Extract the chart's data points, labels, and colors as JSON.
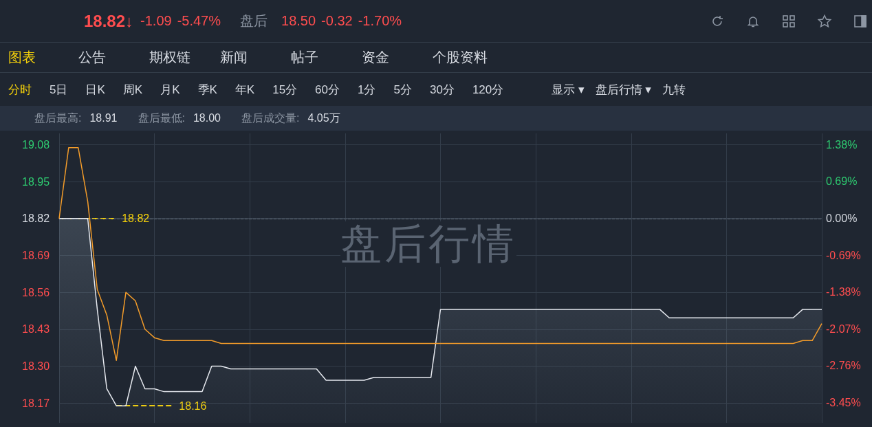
{
  "chart_data": {
    "type": "line",
    "categories": [
      null,
      null,
      null,
      null,
      null,
      null,
      null,
      null,
      null,
      null,
      null,
      null,
      null,
      null,
      null,
      null,
      null,
      null,
      null,
      null,
      null,
      null,
      null,
      null,
      null,
      null,
      null,
      null,
      null,
      null,
      null,
      null,
      null,
      null,
      null,
      null,
      null,
      null,
      null,
      null,
      null,
      null,
      null,
      null,
      null,
      null,
      null,
      null,
      null,
      null,
      null,
      null,
      null,
      null,
      null,
      null,
      null,
      null,
      null,
      null,
      null,
      null,
      null,
      null,
      null,
      null,
      null,
      null,
      null,
      null,
      null,
      null,
      null,
      null,
      null,
      null,
      null,
      null,
      null,
      null,
      null
    ],
    "series": [
      {
        "color": "#e6e9ef",
        "type": "area",
        "values": [
          18.82,
          18.82,
          18.82,
          18.82,
          18.5,
          18.22,
          18.16,
          18.16,
          18.3,
          18.22,
          18.22,
          18.21,
          18.21,
          18.21,
          18.21,
          18.21,
          18.3,
          18.3,
          18.29,
          18.29,
          18.29,
          18.29,
          18.29,
          18.29,
          18.29,
          18.29,
          18.29,
          18.29,
          18.25,
          18.25,
          18.25,
          18.25,
          18.25,
          18.26,
          18.26,
          18.26,
          18.26,
          18.26,
          18.26,
          18.26,
          18.5,
          18.5,
          18.5,
          18.5,
          18.5,
          18.5,
          18.5,
          18.5,
          18.5,
          18.5,
          18.5,
          18.5,
          18.5,
          18.5,
          18.5,
          18.5,
          18.5,
          18.5,
          18.5,
          18.5,
          18.5,
          18.5,
          18.5,
          18.5,
          18.47,
          18.47,
          18.47,
          18.47,
          18.47,
          18.47,
          18.47,
          18.47,
          18.47,
          18.47,
          18.47,
          18.47,
          18.47,
          18.47,
          18.5,
          18.5,
          18.5
        ]
      },
      {
        "color": "#f39c2a",
        "values": [
          18.82,
          19.07,
          19.07,
          18.88,
          18.57,
          18.48,
          18.32,
          18.56,
          18.53,
          18.43,
          18.4,
          18.39,
          18.39,
          18.39,
          18.39,
          18.39,
          18.39,
          18.38,
          18.38,
          18.38,
          18.38,
          18.38,
          18.38,
          18.38,
          18.38,
          18.38,
          18.38,
          18.38,
          18.38,
          18.38,
          18.38,
          18.38,
          18.38,
          18.38,
          18.38,
          18.38,
          18.38,
          18.38,
          18.38,
          18.38,
          18.38,
          18.38,
          18.38,
          18.38,
          18.38,
          18.38,
          18.38,
          18.38,
          18.38,
          18.38,
          18.38,
          18.38,
          18.38,
          18.38,
          18.38,
          18.38,
          18.38,
          18.38,
          18.38,
          18.38,
          18.38,
          18.38,
          18.38,
          18.38,
          18.38,
          18.38,
          18.38,
          18.38,
          18.38,
          18.38,
          18.38,
          18.38,
          18.38,
          18.38,
          18.38,
          18.38,
          18.38,
          18.38,
          18.39,
          18.39,
          18.45
        ]
      }
    ],
    "ylim": [
      18.1,
      19.12
    ],
    "yticks": [
      18.17,
      {
        "value": 18.3,
        "label": "18.30"
      },
      18.43,
      18.56,
      18.69,
      18.82,
      18.95,
      19.08
    ],
    "y2lim": [
      -3.83,
      1.59
    ],
    "y2ticks": [
      {
        "value": -3.45,
        "label": "-3.45%"
      },
      {
        "value": -2.76,
        "label": "-2.76%"
      },
      {
        "value": -2.07,
        "label": "-2.07%"
      },
      {
        "value": -1.38,
        "label": "-1.38%"
      },
      {
        "value": -0.69,
        "label": "-0.69%"
      },
      {
        "value": 0,
        "label": "0.00%"
      },
      {
        "value": 0.69,
        "label": "0.69%"
      },
      {
        "value": 1.38,
        "label": "1.38%"
      }
    ],
    "ref_lines": [
      {
        "axis": "y",
        "value": 18.82,
        "line_style": "dashed",
        "color": "#5b6470"
      }
    ],
    "grid": true,
    "annotations": [
      "18.82",
      "18.16",
      "18.82↓",
      "-1.09",
      "-5.47%",
      "盘后",
      "18.50",
      "-0.32",
      "-1.70%",
      "图表",
      "公告",
      "期权链",
      "新闻",
      "帖子",
      "资金",
      "个股资料",
      "分时",
      "5日",
      "日K",
      "周K",
      "月K",
      "季K",
      "年K",
      "15分",
      "60分",
      "1分",
      "5分",
      "30分",
      "120分",
      "显示 ▾",
      "盘后行情 ▾",
      "九转",
      "盘后最高:",
      "18.91",
      "盘后最低:",
      "18.00",
      "盘后成交量:",
      "4.05万",
      "盘后行情"
    ]
  }
}
